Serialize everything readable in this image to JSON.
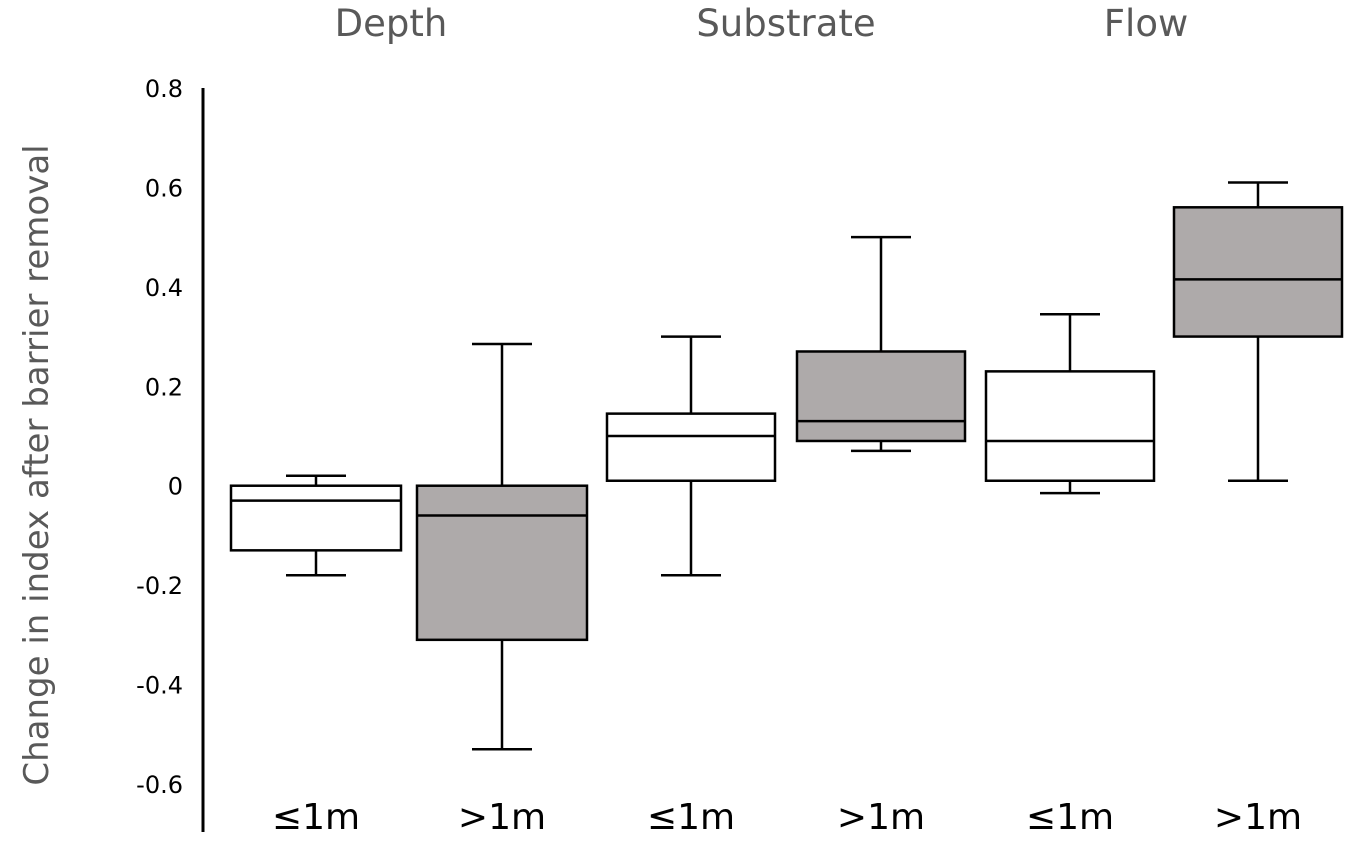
{
  "chart_data": {
    "type": "box",
    "title": "",
    "xlabel": "",
    "ylabel": "Change in index after barrier removal",
    "ylim": [
      -0.6,
      0.8
    ],
    "yticks": [
      {
        "value": 0.8,
        "label": "0.8"
      },
      {
        "value": 0.6,
        "label": "0.6"
      },
      {
        "value": 0.4,
        "label": "0.4"
      },
      {
        "value": 0.2,
        "label": "0.2"
      },
      {
        "value": 0,
        "label": "0"
      },
      {
        "value": -0.2,
        "label": "-0.2"
      },
      {
        "value": -0.4,
        "label": "-0.4"
      },
      {
        "value": -0.6,
        "label": "-0.6"
      }
    ],
    "grid": false,
    "legend": "none",
    "panels": [
      "Depth",
      "Substrate",
      "Flow"
    ],
    "fill_colors": {
      "white": "#ffffff",
      "gray": "#aeaaaa"
    },
    "boxes": [
      {
        "panel": "Depth",
        "category": "≤1m",
        "fill": "white",
        "whisker_low": -0.18,
        "q1": -0.13,
        "median": -0.03,
        "q3": 0.0,
        "whisker_high": 0.02
      },
      {
        "panel": "Depth",
        "category": ">1m",
        "fill": "gray",
        "whisker_low": -0.53,
        "q1": -0.31,
        "median": -0.06,
        "q3": 0.0,
        "whisker_high": 0.285
      },
      {
        "panel": "Substrate",
        "category": "≤1m",
        "fill": "white",
        "whisker_low": -0.18,
        "q1": 0.01,
        "median": 0.1,
        "q3": 0.145,
        "whisker_high": 0.3
      },
      {
        "panel": "Substrate",
        "category": ">1m",
        "fill": "gray",
        "whisker_low": 0.07,
        "q1": 0.09,
        "median": 0.13,
        "q3": 0.27,
        "whisker_high": 0.5
      },
      {
        "panel": "Flow",
        "category": "≤1m",
        "fill": "white",
        "whisker_low": -0.015,
        "q1": 0.01,
        "median": 0.09,
        "q3": 0.23,
        "whisker_high": 0.345
      },
      {
        "panel": "Flow",
        "category": ">1m",
        "fill": "gray",
        "whisker_low": 0.01,
        "q1": 0.3,
        "median": 0.415,
        "q3": 0.56,
        "whisker_high": 0.61
      }
    ]
  }
}
